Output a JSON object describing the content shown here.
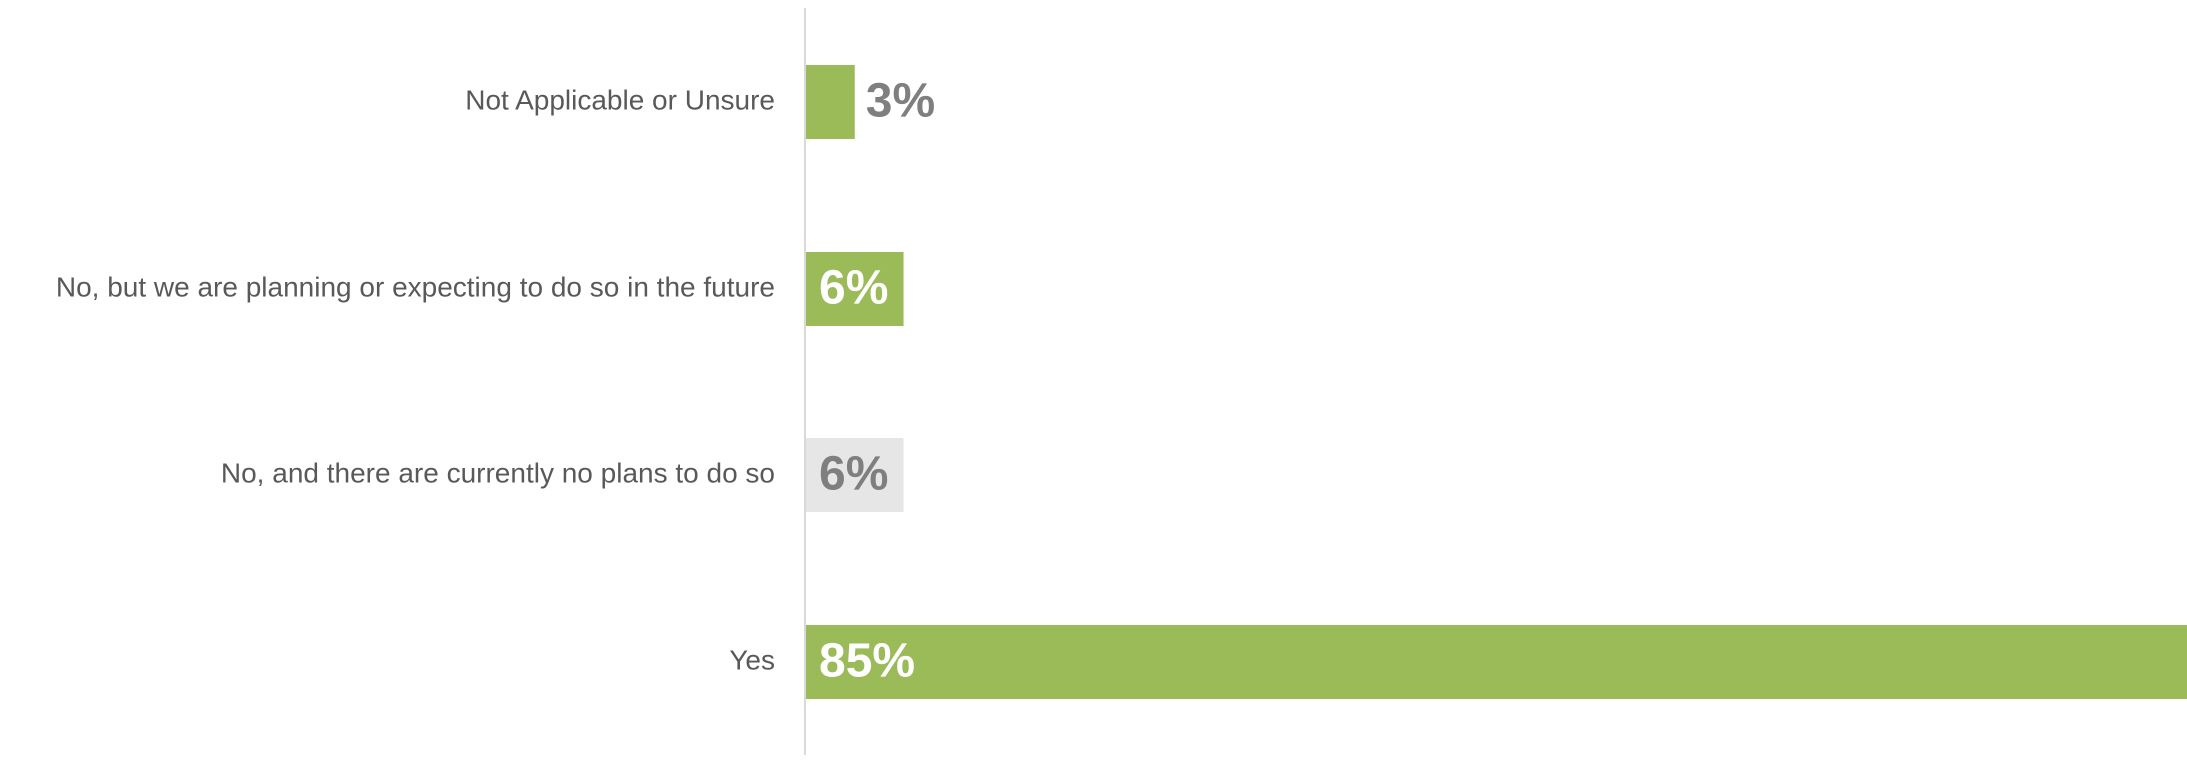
{
  "chart_data": {
    "type": "bar",
    "orientation": "horizontal",
    "categories": [
      "Not Applicable or Unsure",
      "No, but we are planning or expecting to do so in the future",
      "No, and there are currently no plans to do so",
      "Yes"
    ],
    "values": [
      3,
      6,
      6,
      85
    ],
    "value_labels": [
      "3%",
      "6%",
      "6%",
      "85%"
    ],
    "value_format": "percent",
    "xlim": [
      0,
      85
    ],
    "grid": false,
    "legend": "none",
    "colors": {
      "bar": "#9BBB59",
      "bar_muted": "#E6E6E6",
      "axis": "#D9D9D9",
      "label": "#595959",
      "value_outside": "#7F7F7F",
      "value_inside": "#FFFFFF"
    },
    "highlight": [
      true,
      true,
      false,
      true
    ]
  }
}
